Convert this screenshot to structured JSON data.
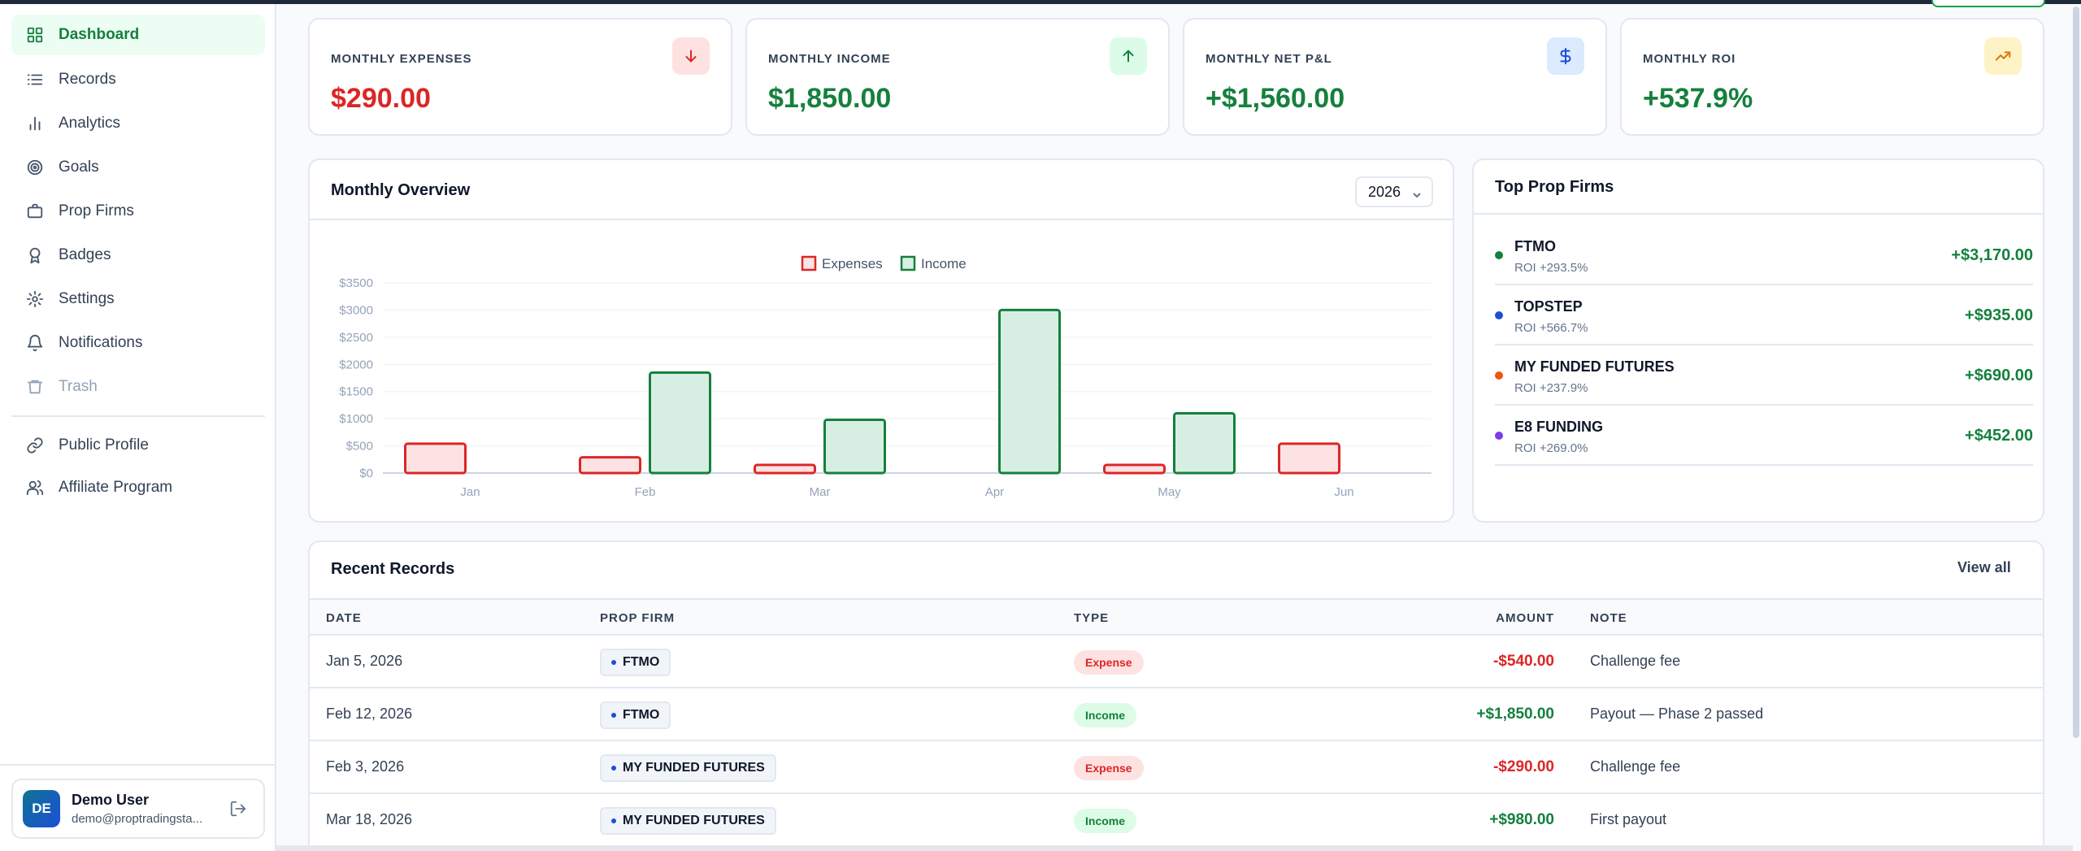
{
  "sidebar": {
    "items": [
      {
        "label": "Dashboard",
        "icon": "grid-icon",
        "active": true
      },
      {
        "label": "Records",
        "icon": "list-icon"
      },
      {
        "label": "Analytics",
        "icon": "bar-chart-icon"
      },
      {
        "label": "Goals",
        "icon": "target-icon"
      },
      {
        "label": "Prop Firms",
        "icon": "briefcase-icon"
      },
      {
        "label": "Badges",
        "icon": "award-icon"
      },
      {
        "label": "Settings",
        "icon": "gear-icon"
      },
      {
        "label": "Notifications",
        "icon": "bell-icon"
      },
      {
        "label": "Trash",
        "icon": "trash-icon"
      },
      {
        "label": "Public Profile",
        "icon": "link-icon"
      },
      {
        "label": "Affiliate Program",
        "icon": "users-icon"
      }
    ],
    "user": {
      "initials": "DE",
      "name": "Demo User",
      "email": "demo@proptradingsta..."
    }
  },
  "stats": [
    {
      "label": "MONTHLY EXPENSES",
      "value": "$290.00",
      "icon": "arrow-down-icon",
      "tone": "red"
    },
    {
      "label": "MONTHLY INCOME",
      "value": "$1,850.00",
      "icon": "arrow-up-icon",
      "tone": "green"
    },
    {
      "label": "MONTHLY NET P&L",
      "value": "+$1,560.00",
      "icon": "dollar-icon",
      "tone": "blue"
    },
    {
      "label": "MONTHLY ROI",
      "value": "+537.9%",
      "icon": "trending-up-icon",
      "tone": "amber"
    }
  ],
  "overview": {
    "title": "Monthly Overview",
    "year": "2026"
  },
  "chart_data": {
    "type": "bar",
    "categories": [
      "Jan",
      "Feb",
      "Mar",
      "Apr",
      "May",
      "Jun"
    ],
    "series": [
      {
        "name": "Expenses",
        "values": [
          540,
          290,
          150,
          0,
          150,
          540
        ],
        "color": "#dc2626",
        "fill": "#fde2e4"
      },
      {
        "name": "Income",
        "values": [
          0,
          1850,
          980,
          3000,
          1100,
          0
        ],
        "color": "#15803d",
        "fill": "#d7efe3"
      }
    ],
    "yticks": [
      "$0",
      "$500",
      "$1000",
      "$1500",
      "$2000",
      "$2500",
      "$3000",
      "$3500"
    ],
    "ylim": [
      0,
      3500
    ],
    "legend": "top-center",
    "grid": true
  },
  "top_firms": {
    "title": "Top Prop Firms",
    "items": [
      {
        "name": "FTMO",
        "roi": "ROI +293.5%",
        "amount": "+$3,170.00",
        "color": "#15803d"
      },
      {
        "name": "TOPSTEP",
        "roi": "ROI +566.7%",
        "amount": "+$935.00",
        "color": "#1d4ed8"
      },
      {
        "name": "MY FUNDED FUTURES",
        "roi": "ROI +237.9%",
        "amount": "+$690.00",
        "color": "#ea580c"
      },
      {
        "name": "E8 FUNDING",
        "roi": "ROI +269.0%",
        "amount": "+$452.00",
        "color": "#7c3aed"
      }
    ]
  },
  "records": {
    "title": "Recent Records",
    "view_all": "View all",
    "headers": {
      "date": "DATE",
      "firm": "PROP FIRM",
      "type": "TYPE",
      "amount": "AMOUNT",
      "note": "NOTE"
    },
    "rows": [
      {
        "date": "Jan 5, 2026",
        "firm": "FTMO",
        "type": "Expense",
        "amount": "-$540.00",
        "note": "Challenge fee"
      },
      {
        "date": "Feb 12, 2026",
        "firm": "FTMO",
        "type": "Income",
        "amount": "+$1,850.00",
        "note": "Payout — Phase 2 passed"
      },
      {
        "date": "Feb 3, 2026",
        "firm": "MY FUNDED FUTURES",
        "type": "Expense",
        "amount": "-$290.00",
        "note": "Challenge fee"
      },
      {
        "date": "Mar 18, 2026",
        "firm": "MY FUNDED FUTURES",
        "type": "Income",
        "amount": "+$980.00",
        "note": "First payout"
      }
    ]
  }
}
